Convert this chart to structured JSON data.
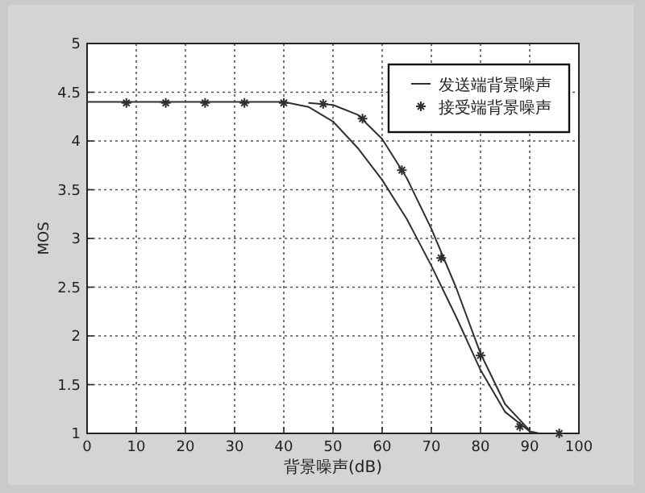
{
  "chart_data": {
    "type": "line",
    "xlabel": "背景噪声(dB)",
    "ylabel": "MOS",
    "xlim": [
      0,
      100
    ],
    "ylim": [
      1,
      5
    ],
    "xticks": [
      0,
      10,
      20,
      30,
      40,
      50,
      60,
      70,
      80,
      90,
      100
    ],
    "yticks": [
      1,
      1.5,
      2,
      2.5,
      3,
      3.5,
      4,
      4.5,
      5
    ],
    "grid": true,
    "legend": "top right",
    "series": [
      {
        "name": "发送端背景噪声",
        "color": "#303030",
        "marker": "none",
        "x": [
          0,
          10,
          20,
          30,
          40,
          45,
          50,
          55,
          60,
          65,
          70,
          75,
          80,
          85,
          90,
          92
        ],
        "values": [
          4.4,
          4.4,
          4.4,
          4.4,
          4.4,
          4.35,
          4.2,
          3.93,
          3.6,
          3.2,
          2.72,
          2.2,
          1.65,
          1.22,
          1.02,
          1.0
        ]
      },
      {
        "color": "#303030",
        "marker": "none",
        "x": [
          45,
          50,
          55,
          60,
          65,
          70,
          75,
          80,
          85,
          90
        ],
        "values": [
          4.39,
          4.37,
          4.27,
          4.02,
          3.62,
          3.1,
          2.5,
          1.82,
          1.3,
          1.03
        ]
      },
      {
        "name": "接受端背景噪声",
        "type": "scatter",
        "color": "#303030",
        "marker": "cross",
        "x": [
          8,
          16,
          24,
          32,
          40,
          48,
          56,
          64,
          72,
          80,
          88,
          96
        ],
        "values": [
          4.39,
          4.39,
          4.39,
          4.39,
          4.39,
          4.38,
          4.23,
          3.7,
          2.8,
          1.8,
          1.07,
          1.0
        ]
      }
    ]
  }
}
